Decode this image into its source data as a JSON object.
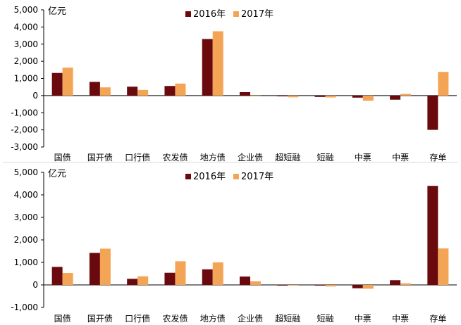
{
  "chart_data": [
    {
      "type": "bar",
      "unit": "亿元",
      "categories": [
        "国债",
        "国开债",
        "口行债",
        "农发债",
        "地方债",
        "企业债",
        "超短融",
        "短融",
        "中票",
        "中票",
        "存单"
      ],
      "series": [
        {
          "name": "2016年",
          "color": "#6b0a0e",
          "values": [
            1320,
            800,
            520,
            560,
            3300,
            200,
            -20,
            -80,
            -120,
            -240,
            -2000
          ]
        },
        {
          "name": "2017年",
          "color": "#f4a455",
          "values": [
            1630,
            480,
            330,
            700,
            3750,
            -20,
            -100,
            -110,
            -300,
            100,
            1380
          ]
        }
      ],
      "ylim": [
        -3000,
        5000
      ],
      "yticks": [
        -3000,
        -2000,
        -1000,
        0,
        1000,
        2000,
        3000,
        4000,
        5000
      ],
      "ytick_labels": [
        "-3,000",
        "-2,000",
        "-1,000",
        "0",
        "1,000",
        "2,000",
        "3,000",
        "4,000",
        "5,000"
      ],
      "legend": "top-center"
    },
    {
      "type": "bar",
      "unit": "亿元",
      "categories": [
        "国债",
        "国开债",
        "口行债",
        "农发债",
        "地方债",
        "企业债",
        "超短融",
        "短融",
        "中票",
        "中票",
        "存单"
      ],
      "series": [
        {
          "name": "2016年",
          "color": "#6b0a0e",
          "values": [
            800,
            1420,
            270,
            540,
            690,
            370,
            -10,
            -30,
            -150,
            210,
            4400
          ]
        },
        {
          "name": "2017年",
          "color": "#f4a455",
          "values": [
            530,
            1610,
            380,
            1050,
            1000,
            160,
            -20,
            -70,
            -170,
            70,
            1620
          ]
        }
      ],
      "ylim": [
        -1000,
        5000
      ],
      "yticks": [
        -1000,
        0,
        1000,
        2000,
        3000,
        4000,
        5000
      ],
      "ytick_labels": [
        "-1,000",
        "0",
        "1,000",
        "2,000",
        "3,000",
        "4,000",
        "5,000"
      ],
      "legend": "top-center"
    }
  ]
}
